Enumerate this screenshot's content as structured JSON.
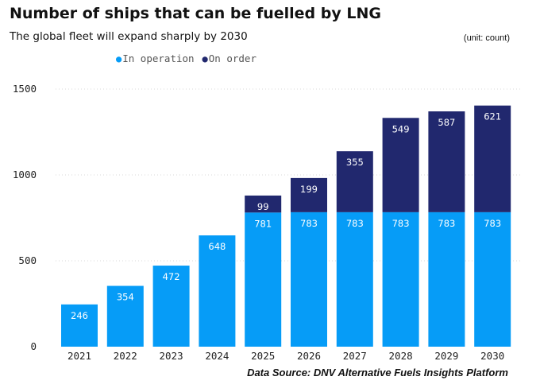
{
  "chart_data": {
    "type": "bar",
    "stacked": true,
    "title": "Number of ships that can be fuelled by LNG",
    "subtitle": "The global fleet will expand sharply by 2030",
    "unit_note": "(unit: count)",
    "source": "Data Source: DNV Alternative Fuels Insights Platform",
    "categories": [
      "2021",
      "2022",
      "2023",
      "2024",
      "2025",
      "2026",
      "2027",
      "2028",
      "2029",
      "2030"
    ],
    "series": [
      {
        "name": "In operation",
        "color": "#069cf7",
        "values": [
          246,
          354,
          472,
          648,
          781,
          783,
          783,
          783,
          783,
          783
        ]
      },
      {
        "name": "On order",
        "color": "#21286e",
        "values": [
          null,
          null,
          null,
          null,
          99,
          199,
          355,
          549,
          587,
          621
        ]
      }
    ],
    "ylim": [
      0,
      1500
    ],
    "yticks": [
      "0",
      "500",
      "1000",
      "1500"
    ],
    "grid": true,
    "legend_position": "top"
  }
}
